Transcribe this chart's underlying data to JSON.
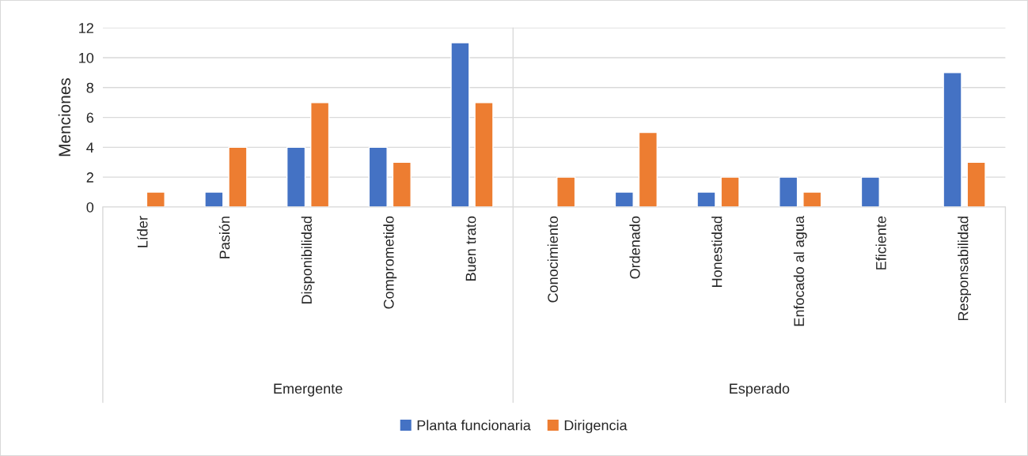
{
  "chart_data": {
    "type": "bar",
    "categories": [
      "Líder",
      "Pasión",
      "Disponibilidad",
      "Comprometido",
      "Buen trato",
      "Conocimiento",
      "Ordenado",
      "Honestidad",
      "Enfocado al agua",
      "Eficiente",
      "Responsabilidad"
    ],
    "series": [
      {
        "name": "Planta funcionaria",
        "color": "#4472c4",
        "values": [
          null,
          1,
          4,
          4,
          11,
          null,
          1,
          1,
          2,
          2,
          9
        ]
      },
      {
        "name": "Dirigencia",
        "color": "#ed7d31",
        "values": [
          1,
          4,
          7,
          3,
          7,
          2,
          5,
          2,
          1,
          null,
          3
        ]
      }
    ],
    "ylabel": "Menciones",
    "ylim": [
      0,
      12
    ],
    "yticks": [
      0,
      2,
      4,
      6,
      8,
      10,
      12
    ],
    "grid": "y",
    "legend": "bottom",
    "annotations": [
      "Emergente",
      "Esperado"
    ]
  }
}
